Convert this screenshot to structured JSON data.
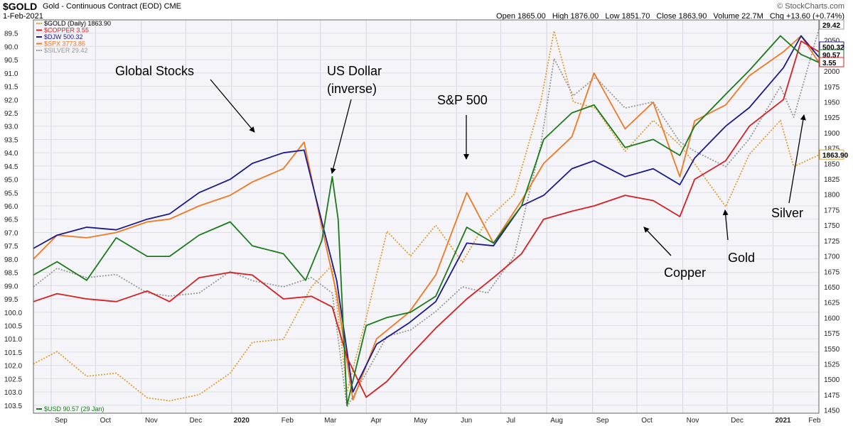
{
  "header": {
    "symbol": "$GOLD",
    "description": "Gold - Continuous Contract (EOD) CME",
    "date": "1-Feb-2021",
    "brand": "© StockCharts.com",
    "open": "Open 1865.00",
    "high": "High 1876.00",
    "low": "Low 1851.70",
    "close": "Close 1863.90",
    "volume": "Volume 22.7M",
    "change": "Chg +13.60 (+0.74%)"
  },
  "legend": [
    {
      "label": "$GOLD (Daily) 1863.90",
      "color": "#e0a030",
      "dash": true
    },
    {
      "label": "$COPPER 3.55",
      "color": "#d42020",
      "dash": false
    },
    {
      "label": "$DJW 500.32",
      "color": "#1a1a8c",
      "dash": false
    },
    {
      "label": "$SPX 3773.86",
      "color": "#f07820",
      "dash": false
    },
    {
      "label": "$SILVER 29.42",
      "color": "#999999",
      "dash": true
    }
  ],
  "bottom_legend": {
    "label": "$USD 90.57 (29 Jan)",
    "color": "#1a7a1a"
  },
  "annotations": [
    {
      "text": "Global Stocks"
    },
    {
      "text": "US Dollar"
    },
    {
      "text": "(inverse)"
    },
    {
      "text": "S&P 500"
    },
    {
      "text": "Copper"
    },
    {
      "text": "Gold"
    },
    {
      "text": "Silver"
    }
  ],
  "chart_data": {
    "type": "line",
    "x_range": [
      "2019-08-20",
      "2021-02-01"
    ],
    "x_ticks": [
      "Sep",
      "Oct",
      "Nov",
      "Dec",
      "2020",
      "Feb",
      "Mar",
      "Apr",
      "May",
      "Jun",
      "Jul",
      "Aug",
      "Sep",
      "Oct",
      "Nov",
      "Dec",
      "2021",
      "Feb"
    ],
    "x_ticks_bold": [
      "2020",
      "2021"
    ],
    "left_axis": {
      "inverted": true,
      "ylim": [
        89.0,
        103.8
      ],
      "ticks": [
        "89.5",
        "90.0",
        "90.5",
        "91.0",
        "91.5",
        "92.0",
        "92.5",
        "93.0",
        "93.5",
        "94.0",
        "94.5",
        "95.0",
        "95.5",
        "96.0",
        "96.5",
        "97.0",
        "97.5",
        "98.0",
        "98.5",
        "99.0",
        "99.5",
        "100.0",
        "100.5",
        "101.0",
        "101.5",
        "102.0",
        "102.5",
        "103.0",
        "103.5"
      ]
    },
    "right_axis": {
      "ylim": [
        1445,
        2083
      ],
      "ticks": [
        "2075",
        "2050",
        "2025",
        "2000",
        "1975",
        "1950",
        "1925",
        "1900",
        "1875",
        "1850",
        "1825",
        "1800",
        "1775",
        "1750",
        "1725",
        "1700",
        "1675",
        "1650",
        "1625",
        "1600",
        "1575",
        "1550",
        "1525",
        "1500",
        "1475",
        "1450"
      ],
      "last_value_tags": [
        {
          "label": "29.42",
          "series": "SILVER"
        },
        {
          "label": "500.32",
          "series": "DJW"
        },
        {
          "label": "90.57",
          "series": "USD"
        },
        {
          "label": "3.55",
          "series": "COPPER"
        },
        {
          "label": "1863.90",
          "series": "GOLD"
        }
      ]
    },
    "grid": true,
    "legend_placement": "top-left",
    "series": [
      {
        "name": "$GOLD",
        "axis": "right",
        "color": "#e0a030",
        "dash": true,
        "x": [
          "2019-08-20",
          "2019-09-05",
          "2019-09-25",
          "2019-10-15",
          "2019-11-05",
          "2019-11-20",
          "2019-12-10",
          "2019-12-31",
          "2020-01-15",
          "2020-02-05",
          "2020-02-24",
          "2020-03-09",
          "2020-03-19",
          "2020-04-01",
          "2020-04-15",
          "2020-05-01",
          "2020-05-18",
          "2020-06-05",
          "2020-06-22",
          "2020-07-10",
          "2020-07-28",
          "2020-08-06",
          "2020-08-19",
          "2020-09-03",
          "2020-09-23",
          "2020-10-12",
          "2020-10-30",
          "2020-11-09",
          "2020-11-30",
          "2020-12-16",
          "2021-01-06",
          "2021-01-15",
          "2021-02-01"
        ],
        "y": [
          1525,
          1545,
          1505,
          1510,
          1470,
          1465,
          1475,
          1510,
          1560,
          1565,
          1650,
          1685,
          1480,
          1600,
          1740,
          1700,
          1750,
          1690,
          1760,
          1800,
          1950,
          2065,
          1950,
          1940,
          1870,
          1920,
          1880,
          1850,
          1780,
          1865,
          1920,
          1845,
          1864
        ]
      },
      {
        "name": "$SILVER",
        "axis": "right",
        "color": "#999999",
        "dash": true,
        "x": [
          "2019-08-20",
          "2019-09-05",
          "2019-09-25",
          "2019-10-15",
          "2019-11-05",
          "2019-11-20",
          "2019-12-10",
          "2019-12-31",
          "2020-01-15",
          "2020-02-05",
          "2020-02-24",
          "2020-03-09",
          "2020-03-19",
          "2020-04-01",
          "2020-04-15",
          "2020-05-01",
          "2020-05-18",
          "2020-06-05",
          "2020-06-22",
          "2020-07-10",
          "2020-07-28",
          "2020-08-06",
          "2020-08-19",
          "2020-09-03",
          "2020-09-23",
          "2020-10-12",
          "2020-10-30",
          "2020-11-09",
          "2020-11-30",
          "2020-12-16",
          "2021-01-06",
          "2021-01-15",
          "2021-02-01"
        ],
        "y": [
          1650,
          1680,
          1665,
          1670,
          1640,
          1635,
          1640,
          1675,
          1660,
          1650,
          1665,
          1640,
          1455,
          1510,
          1570,
          1580,
          1610,
          1650,
          1640,
          1700,
          1880,
          2020,
          1960,
          1990,
          1940,
          1950,
          1885,
          1870,
          1845,
          1890,
          1975,
          1925,
          2068
        ]
      },
      {
        "name": "$SPX",
        "axis": "left",
        "color": "#f07820",
        "dash": false,
        "x": [
          "2019-08-20",
          "2019-09-05",
          "2019-09-25",
          "2019-10-15",
          "2019-11-05",
          "2019-11-20",
          "2019-12-10",
          "2019-12-31",
          "2020-01-15",
          "2020-02-05",
          "2020-02-19",
          "2020-03-02",
          "2020-03-12",
          "2020-03-23",
          "2020-04-08",
          "2020-04-30",
          "2020-05-18",
          "2020-06-08",
          "2020-06-26",
          "2020-07-15",
          "2020-07-30",
          "2020-08-18",
          "2020-09-02",
          "2020-09-23",
          "2020-10-12",
          "2020-10-30",
          "2020-11-09",
          "2020-11-30",
          "2020-12-16",
          "2021-01-08",
          "2021-01-20",
          "2021-02-01"
        ],
        "y": [
          98.0,
          97.1,
          97.2,
          97.0,
          96.6,
          96.5,
          96.0,
          95.6,
          95.1,
          94.6,
          93.6,
          96.8,
          99.3,
          103.3,
          101.0,
          100.0,
          98.6,
          95.5,
          97.4,
          95.8,
          94.4,
          93.4,
          91.0,
          93.1,
          92.1,
          94.9,
          92.8,
          92.2,
          91.1,
          90.2,
          89.6,
          90.6
        ]
      },
      {
        "name": "$DJW",
        "axis": "left",
        "color": "#1a1a8c",
        "dash": false,
        "x": [
          "2019-08-20",
          "2019-09-05",
          "2019-09-25",
          "2019-10-15",
          "2019-11-05",
          "2019-11-20",
          "2019-12-10",
          "2019-12-31",
          "2020-01-15",
          "2020-02-05",
          "2020-02-19",
          "2020-03-02",
          "2020-03-12",
          "2020-03-23",
          "2020-04-08",
          "2020-04-30",
          "2020-05-18",
          "2020-06-08",
          "2020-06-26",
          "2020-07-15",
          "2020-07-30",
          "2020-08-18",
          "2020-09-02",
          "2020-09-23",
          "2020-10-12",
          "2020-10-30",
          "2020-11-09",
          "2020-11-30",
          "2020-12-16",
          "2021-01-08",
          "2021-01-20",
          "2021-02-01"
        ],
        "y": [
          97.6,
          97.1,
          96.8,
          96.9,
          96.5,
          96.3,
          95.5,
          95.0,
          94.4,
          94.0,
          93.9,
          96.6,
          98.8,
          103.0,
          101.2,
          100.4,
          99.6,
          97.4,
          97.5,
          96.0,
          95.6,
          94.6,
          94.3,
          94.9,
          94.6,
          95.2,
          94.2,
          93.0,
          92.3,
          90.8,
          89.6,
          90.4
        ]
      },
      {
        "name": "$COPPER",
        "axis": "left",
        "color": "#d42020",
        "dash": false,
        "x": [
          "2019-08-20",
          "2019-09-05",
          "2019-09-25",
          "2019-10-15",
          "2019-11-05",
          "2019-11-20",
          "2019-12-10",
          "2019-12-31",
          "2020-01-15",
          "2020-02-05",
          "2020-02-24",
          "2020-03-09",
          "2020-03-19",
          "2020-04-01",
          "2020-04-15",
          "2020-05-01",
          "2020-05-18",
          "2020-06-08",
          "2020-06-26",
          "2020-07-15",
          "2020-07-30",
          "2020-08-18",
          "2020-09-02",
          "2020-09-23",
          "2020-10-12",
          "2020-10-30",
          "2020-11-09",
          "2020-11-30",
          "2020-12-16",
          "2021-01-08",
          "2021-01-20",
          "2021-02-01"
        ],
        "y": [
          99.6,
          99.3,
          99.5,
          99.6,
          99.2,
          99.6,
          98.7,
          98.5,
          98.6,
          99.5,
          99.4,
          99.8,
          101.7,
          103.2,
          102.6,
          101.6,
          100.6,
          99.5,
          98.7,
          97.8,
          96.5,
          96.2,
          96.0,
          95.6,
          95.8,
          96.4,
          95.0,
          94.3,
          93.0,
          92.0,
          89.8,
          90.2
        ]
      },
      {
        "name": "$USD",
        "axis": "left",
        "color": "#1a7a1a",
        "dash": false,
        "x": [
          "2019-08-20",
          "2019-09-05",
          "2019-09-25",
          "2019-10-15",
          "2019-11-05",
          "2019-11-20",
          "2019-12-10",
          "2019-12-31",
          "2020-01-15",
          "2020-02-05",
          "2020-02-20",
          "2020-03-02",
          "2020-03-09",
          "2020-03-13",
          "2020-03-19",
          "2020-04-01",
          "2020-04-15",
          "2020-05-01",
          "2020-05-18",
          "2020-06-08",
          "2020-06-26",
          "2020-07-15",
          "2020-07-30",
          "2020-08-18",
          "2020-09-02",
          "2020-09-23",
          "2020-10-12",
          "2020-10-30",
          "2020-11-09",
          "2020-11-30",
          "2020-12-16",
          "2021-01-06",
          "2021-01-20",
          "2021-02-01"
        ],
        "y": [
          98.6,
          98.1,
          98.8,
          97.2,
          97.9,
          97.9,
          97.1,
          96.6,
          97.5,
          97.8,
          98.8,
          97.3,
          94.9,
          96.5,
          103.5,
          100.5,
          100.2,
          100.0,
          99.4,
          96.8,
          97.4,
          96.0,
          93.5,
          92.5,
          92.2,
          93.8,
          93.5,
          94.1,
          93.0,
          91.8,
          90.9,
          89.6,
          90.3,
          90.6
        ]
      }
    ]
  }
}
